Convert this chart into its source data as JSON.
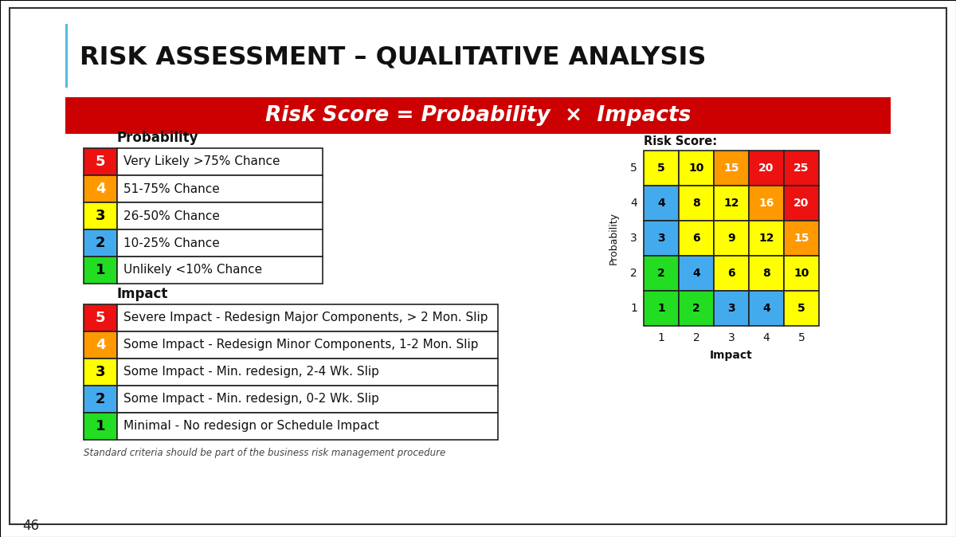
{
  "title": "RISK ASSESSMENT – QUALITATIVE ANALYSIS",
  "subtitle": "Risk Score = Probability  ×  Impacts",
  "subtitle_bg": "#CC0000",
  "subtitle_color": "#FFFFFF",
  "page_number": "46",
  "bg_color": "#FFFFFF",
  "border_color": "#333333",
  "prob_label": "Probability",
  "impact_label": "Impact",
  "prob_rows": [
    {
      "num": 5,
      "color": "#EE1111",
      "text": "Very Likely >75% Chance",
      "text_color": "#FFFFFF"
    },
    {
      "num": 4,
      "color": "#FF9900",
      "text": "51-75% Chance",
      "text_color": "#FFFFFF"
    },
    {
      "num": 3,
      "color": "#FFFF00",
      "text": "26-50% Chance",
      "text_color": "#000000"
    },
    {
      "num": 2,
      "color": "#44AAEE",
      "text": "10-25% Chance",
      "text_color": "#000000"
    },
    {
      "num": 1,
      "color": "#22DD22",
      "text": "Unlikely <10% Chance",
      "text_color": "#000000"
    }
  ],
  "impact_rows": [
    {
      "num": 5,
      "color": "#EE1111",
      "text": "Severe Impact - Redesign Major Components, > 2 Mon. Slip",
      "text_color": "#FFFFFF"
    },
    {
      "num": 4,
      "color": "#FF9900",
      "text": "Some Impact - Redesign Minor Components, 1-2 Mon. Slip",
      "text_color": "#FFFFFF"
    },
    {
      "num": 3,
      "color": "#FFFF00",
      "text": "Some Impact - Min. redesign, 2-4 Wk. Slip",
      "text_color": "#000000"
    },
    {
      "num": 2,
      "color": "#44AAEE",
      "text": "Some Impact - Min. redesign, 0-2 Wk. Slip",
      "text_color": "#000000"
    },
    {
      "num": 1,
      "color": "#22DD22",
      "text": "Minimal - No redesign or Schedule Impact",
      "text_color": "#000000"
    }
  ],
  "footnote": "Standard criteria should be part of the business risk management procedure",
  "matrix_title": "Risk Score:",
  "matrix_prob_label": "Probability",
  "matrix_impact_label": "Impact",
  "matrix_colors": [
    [
      "#22DD22",
      "#22DD22",
      "#44AAEE",
      "#44AAEE",
      "#FFFF00"
    ],
    [
      "#22DD22",
      "#44AAEE",
      "#FFFF00",
      "#FFFF00",
      "#FFFF00"
    ],
    [
      "#44AAEE",
      "#FFFF00",
      "#FFFF00",
      "#FFFF00",
      "#FF9900"
    ],
    [
      "#44AAEE",
      "#FFFF00",
      "#FFFF00",
      "#FF9900",
      "#EE1111"
    ],
    [
      "#FFFF00",
      "#FFFF00",
      "#FF9900",
      "#EE1111",
      "#EE1111"
    ]
  ],
  "matrix_values": [
    [
      1,
      2,
      3,
      4,
      5
    ],
    [
      2,
      4,
      6,
      8,
      10
    ],
    [
      3,
      6,
      9,
      12,
      15
    ],
    [
      4,
      8,
      12,
      16,
      20
    ],
    [
      5,
      10,
      15,
      20,
      25
    ]
  ],
  "matrix_text_colors": [
    [
      "#000000",
      "#000000",
      "#000000",
      "#000000",
      "#000000"
    ],
    [
      "#000000",
      "#000000",
      "#000000",
      "#000000",
      "#000000"
    ],
    [
      "#000000",
      "#000000",
      "#000000",
      "#000000",
      "#FFFFFF"
    ],
    [
      "#000000",
      "#000000",
      "#000000",
      "#FFFFFF",
      "#FFFFFF"
    ],
    [
      "#000000",
      "#000000",
      "#FFFFFF",
      "#FFFFFF",
      "#FFFFFF"
    ]
  ]
}
